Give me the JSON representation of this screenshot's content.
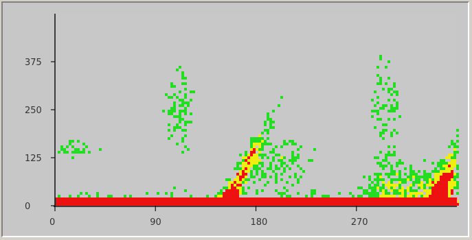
{
  "chart_data": {
    "type": "heatmap",
    "title": "",
    "xlabel": "",
    "ylabel": "",
    "xlim": [
      0,
      360
    ],
    "ylim": [
      0,
      500
    ],
    "x_ticks": [
      0,
      90,
      180,
      270
    ],
    "y_ticks": [
      0,
      125,
      250,
      375
    ],
    "x_tick_labels": [
      "0",
      "90",
      "180",
      "270"
    ],
    "y_tick_labels": [
      "0",
      "125",
      "250",
      "375"
    ],
    "grid": false,
    "legend": "none",
    "colors": {
      "background": "#c8c8c8",
      "low_intensity": "#22dd22",
      "mid_intensity": "#eeee11",
      "high_intensity": "#ee1111",
      "axis": "#111111"
    }
  }
}
